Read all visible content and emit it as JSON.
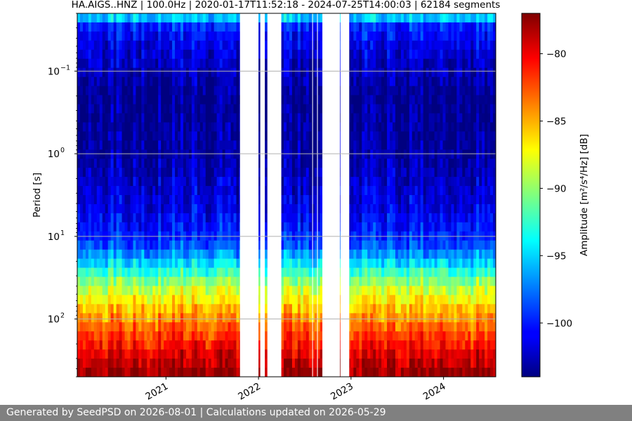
{
  "chart_data": {
    "type": "heatmap",
    "title": "HA.AIGS..HNZ | 100.0Hz | 2020-01-17T11:52:18 - 2024-07-25T14:00:03 | 62184 segments",
    "xlabel": "",
    "ylabel": "Period [s]",
    "colorbar_label": "Amplitude [m²/s⁴/Hz] [dB]",
    "x_range": [
      "2020-01-17",
      "2024-07-25"
    ],
    "x_ticks": [
      {
        "date": "2021-01-01",
        "label": "2021"
      },
      {
        "date": "2022-01-01",
        "label": "2022"
      },
      {
        "date": "2023-01-01",
        "label": "2023"
      },
      {
        "date": "2024-01-01",
        "label": "2024"
      }
    ],
    "y_scale": "log",
    "y_inverted": true,
    "y_range": [
      0.02,
      500
    ],
    "y_ticks": [
      {
        "value": 0.1,
        "base": "10",
        "exp": "−1"
      },
      {
        "value": 1,
        "base": "10",
        "exp": "0"
      },
      {
        "value": 10,
        "base": "10",
        "exp": "1"
      },
      {
        "value": 100,
        "base": "10",
        "exp": "2"
      }
    ],
    "grid": true,
    "colormap": "jet",
    "color_range": [
      -104,
      -77
    ],
    "colorbar_ticks": [
      {
        "value": -80,
        "label": "−80"
      },
      {
        "value": -85,
        "label": "−85"
      },
      {
        "value": -90,
        "label": "−90"
      },
      {
        "value": -95,
        "label": "−95"
      },
      {
        "value": -100,
        "label": "−100"
      }
    ],
    "amplitude_profile_db": [
      {
        "period": 0.02,
        "db": -93
      },
      {
        "period": 0.03,
        "db": -100
      },
      {
        "period": 0.06,
        "db": -101.5
      },
      {
        "period": 0.2,
        "db": -103.5
      },
      {
        "period": 1,
        "db": -103
      },
      {
        "period": 5,
        "db": -101
      },
      {
        "period": 12,
        "db": -99
      },
      {
        "period": 20,
        "db": -95
      },
      {
        "period": 40,
        "db": -89
      },
      {
        "period": 80,
        "db": -85
      },
      {
        "period": 150,
        "db": -82
      },
      {
        "period": 300,
        "db": -79
      },
      {
        "period": 500,
        "db": -77
      }
    ],
    "data_gaps": [
      [
        "2021-10-20",
        "2022-01-01"
      ],
      [
        "2022-01-08",
        "2022-01-26"
      ],
      [
        "2022-02-05",
        "2022-04-01"
      ],
      [
        "2022-08-01",
        "2022-08-03"
      ],
      [
        "2022-08-20",
        "2022-08-23"
      ],
      [
        "2022-09-10",
        "2022-11-18"
      ],
      [
        "2022-11-20",
        "2022-12-25"
      ]
    ]
  },
  "footer_text": "Generated by SeedPSD on 2026-08-01 | Calculations updated on 2026-05-29"
}
